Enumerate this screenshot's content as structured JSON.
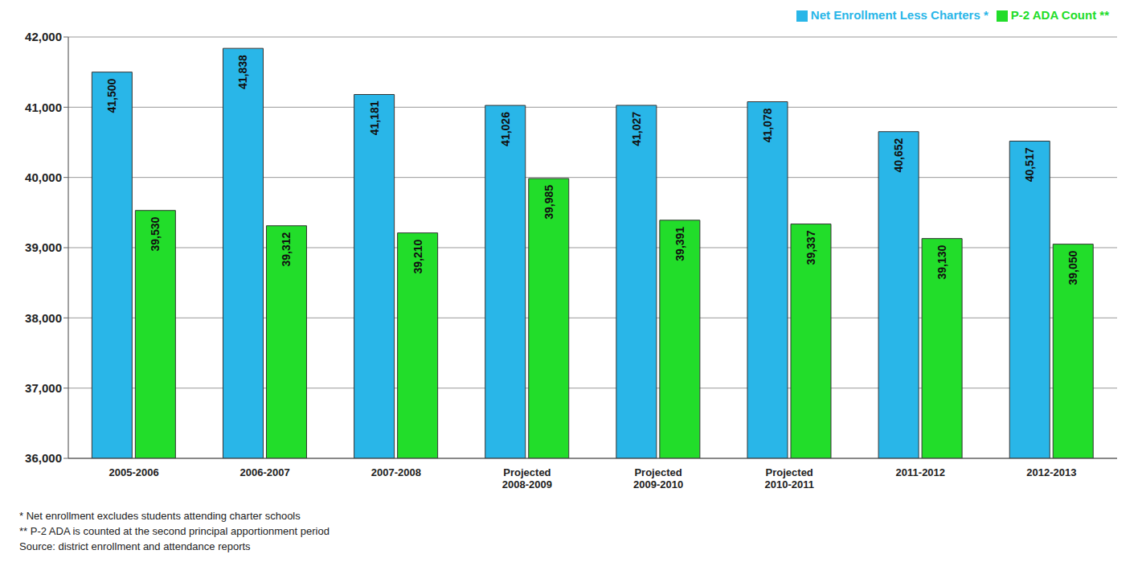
{
  "chart_data": {
    "type": "bar",
    "categories": [
      "2005-2006",
      "2006-2007",
      "2007-2008",
      "Projected 2008-2009",
      "Projected 2009-2010",
      "Projected 2010-2011",
      "2011-2012",
      "2012-2013"
    ],
    "series": [
      {
        "name": "Net Enrollment Less Charters *",
        "color": "#29b6e8",
        "values": [
          41500,
          41838,
          41181,
          41026,
          41027,
          41078,
          40652,
          40517
        ],
        "value_labels": [
          "41,500",
          "41,838",
          "41,181",
          "41,026",
          "41,027",
          "41,078",
          "40,652",
          "40,517"
        ]
      },
      {
        "name": "P-2 ADA Count **",
        "color": "#22dd2a",
        "values": [
          39530,
          39312,
          39210,
          39985,
          39391,
          39337,
          39130,
          39050
        ],
        "value_labels": [
          "39,530",
          "39,312",
          "39,210",
          "39,985",
          "39,391",
          "39,337",
          "39,130",
          "39,050"
        ]
      }
    ],
    "ylim": [
      36000,
      42000
    ],
    "yticks": [
      {
        "value": 36000,
        "label": "36,000"
      },
      {
        "value": 37000,
        "label": "37,000"
      },
      {
        "value": 38000,
        "label": "38,000"
      },
      {
        "value": 39000,
        "label": "39,000"
      },
      {
        "value": 40000,
        "label": "40,000"
      },
      {
        "value": 41000,
        "label": "41,000"
      },
      {
        "value": 42000,
        "label": "42,000"
      }
    ],
    "grid": true,
    "legend": "top-right",
    "data_labels": true,
    "annotations": [
      "* Net enrollment excludes students attending charter schools",
      "** P-2 ADA is counted at the second principal apportionment period",
      "Source: district enrollment and attendance reports"
    ]
  }
}
